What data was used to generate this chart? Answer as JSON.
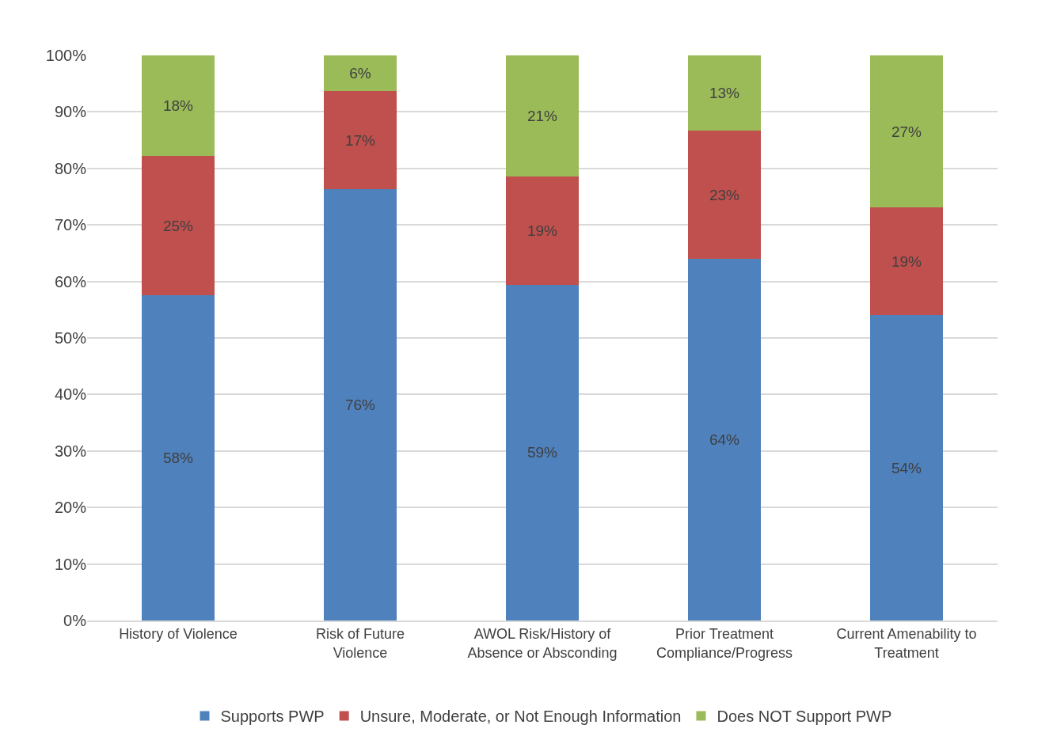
{
  "chart_data": {
    "type": "bar",
    "stacked": true,
    "categories": [
      "History of Violence",
      "Risk of Future Violence",
      "AWOL Risk/History of Absence or Absconding",
      "Prior Treatment Compliance/Progress",
      "Current Amenability to Treatment"
    ],
    "series": [
      {
        "name": "Supports PWP",
        "color": "#4f81bd",
        "values": [
          57.5,
          76.3,
          59.4,
          64.0,
          54.0
        ],
        "value_labels": [
          "58%",
          "76%",
          "59%",
          "64%",
          "54%"
        ]
      },
      {
        "name": "Unsure, Moderate, or Not Enough Information",
        "color": "#c0504d",
        "values": [
          24.7,
          17.4,
          19.2,
          22.7,
          19.1
        ],
        "value_labels": [
          "25%",
          "17%",
          "19%",
          "23%",
          "19%"
        ]
      },
      {
        "name": "Does NOT Support PWP",
        "color": "#9bbb59",
        "values": [
          17.8,
          6.3,
          21.4,
          13.3,
          26.9
        ],
        "value_labels": [
          "18%",
          "6%",
          "21%",
          "13%",
          "27%"
        ]
      }
    ],
    "ylim": [
      0,
      100
    ],
    "yticks": [
      {
        "value": 0,
        "label": "0%"
      },
      {
        "value": 10,
        "label": "10%"
      },
      {
        "value": 20,
        "label": "20%"
      },
      {
        "value": 30,
        "label": "30%"
      },
      {
        "value": 40,
        "label": "40%"
      },
      {
        "value": 50,
        "label": "50%"
      },
      {
        "value": 60,
        "label": "60%"
      },
      {
        "value": 70,
        "label": "70%"
      },
      {
        "value": 80,
        "label": "80%"
      },
      {
        "value": 90,
        "label": "90%"
      },
      {
        "value": 100,
        "label": "100%"
      }
    ],
    "grid": "y",
    "legend": "bottom"
  }
}
